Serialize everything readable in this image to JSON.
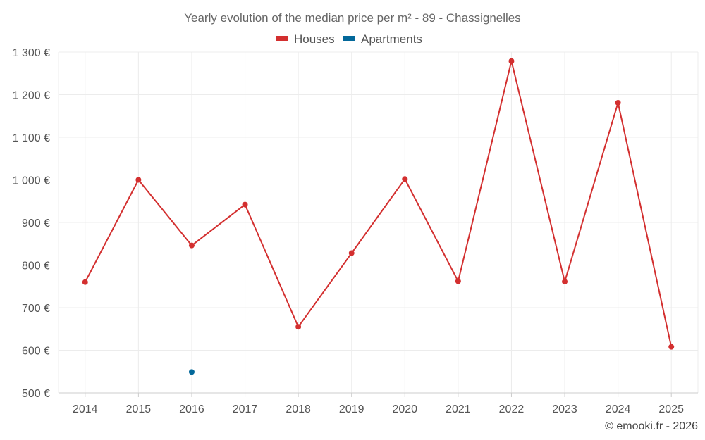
{
  "chart_data": {
    "type": "line",
    "title": "Yearly evolution of the median price per m² - 89 - Chassignelles",
    "categories": [
      "2014",
      "2015",
      "2016",
      "2017",
      "2018",
      "2019",
      "2020",
      "2021",
      "2022",
      "2023",
      "2024",
      "2025"
    ],
    "series": [
      {
        "name": "Houses",
        "color": "#d32f2f",
        "style": "line-markers",
        "values": [
          760,
          1000,
          846,
          942,
          655,
          828,
          1002,
          762,
          1279,
          761,
          1181,
          608
        ]
      },
      {
        "name": "Apartments",
        "color": "#03689a",
        "style": "markers",
        "values": [
          null,
          null,
          549,
          null,
          null,
          null,
          null,
          null,
          null,
          null,
          null,
          null
        ]
      }
    ],
    "yaxis": {
      "min": 500,
      "max": 1300,
      "ticks": [
        500,
        600,
        700,
        800,
        900,
        1000,
        1100,
        1200,
        1300
      ],
      "tick_labels": [
        "500 €",
        "600 €",
        "700 €",
        "800 €",
        "900 €",
        "1 000 €",
        "1 100 €",
        "1 200 €",
        "1 300 €"
      ]
    },
    "xlabel": "",
    "ylabel": "",
    "grid": true,
    "legend_position": "top-center"
  },
  "credit": "© emooki.fr - 2026"
}
